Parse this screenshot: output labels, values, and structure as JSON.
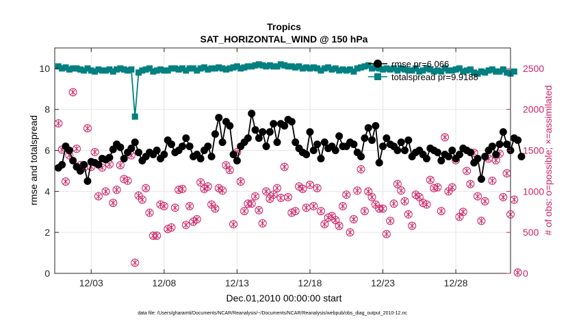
{
  "chart_data": {
    "type": "line",
    "title": "Tropics",
    "subtitle": "SAT_HORIZONTAL_WIND @ 150 hPa",
    "xlabel": "Dec.01,2010 00:00:00 start",
    "ylabel": "rmse and totalspread",
    "y2label": "# of obs: o=possible; ×=assimilated",
    "footer": "data file: /Users/gharamti/Documents/NCAR/Reanalysis/~/Documents/NCAR/Reanalysis/webpub/obs_diag_output_2010-12.nc",
    "xlim": [
      0.5,
      31.75
    ],
    "ylim": [
      0,
      11
    ],
    "y2lim": [
      0,
      2750
    ],
    "xticks": [
      {
        "day": 3,
        "label": "12/03"
      },
      {
        "day": 8,
        "label": "12/08"
      },
      {
        "day": 13,
        "label": "12/13"
      },
      {
        "day": 18,
        "label": "12/18"
      },
      {
        "day": 23,
        "label": "12/23"
      },
      {
        "day": 28,
        "label": "12/28"
      }
    ],
    "yticks": [
      0,
      2,
      4,
      6,
      8,
      10
    ],
    "y2ticks": [
      0,
      500,
      1000,
      1500,
      2000,
      2500
    ],
    "x_step": 0.25,
    "legend": {
      "placement": "top-right",
      "entries": [
        "rmse pr=6.066",
        "totalspread pr=9.9188"
      ]
    },
    "series": [
      {
        "name": "rmse pr=6.066",
        "axis": "left",
        "color": "#000000",
        "values": [
          5.15,
          5.3,
          6.2,
          6.0,
          5.5,
          5.2,
          5.0,
          5.3,
          4.5,
          5.45,
          5.4,
          5.3,
          5.6,
          5.55,
          5.65,
          6.05,
          6.3,
          6.15,
          5.6,
          5.9,
          6.1,
          6.4,
          5.9,
          5.5,
          5.7,
          5.9,
          5.8,
          6.0,
          5.6,
          5.8,
          6.5,
          6.3,
          5.9,
          6.0,
          6.2,
          6.6,
          6.2,
          5.7,
          5.8,
          5.6,
          6.0,
          6.2,
          5.7,
          6.8,
          7.6,
          6.4,
          7.4,
          7.2,
          5.8,
          5.5,
          6.2,
          6.4,
          6.6,
          7.8,
          7.0,
          6.6,
          6.9,
          6.2,
          6.9,
          7.3,
          6.4,
          7.3,
          7.2,
          7.5,
          7.4,
          6.4,
          6.1,
          5.9,
          5.8,
          6.9,
          6.0,
          6.3,
          5.6,
          6.4,
          6.1,
          6.2,
          6.0,
          6.7,
          6.2,
          6.2,
          6.4,
          6.3,
          5.9,
          5.7,
          6.6,
          7.1,
          6.5,
          7.2,
          5.4,
          6.2,
          6.6,
          6.3,
          6.2,
          6.0,
          6.4,
          6.0,
          6.5,
          5.7,
          5.9,
          6.0,
          5.8,
          5.6,
          6.1,
          6.0,
          5.9,
          5.5,
          5.8,
          5.7,
          6.0,
          5.6,
          5.8,
          6.1,
          6.0,
          5.9,
          5.4,
          5.6,
          4.6,
          5.7,
          6.0,
          6.2,
          5.8,
          6.3,
          6.9,
          6.3,
          6.0,
          6.6,
          6.5,
          5.7
        ]
      },
      {
        "name": "totalspread pr=9.9188",
        "axis": "left",
        "color": "#008080",
        "values": [
          10.1,
          10.0,
          10.05,
          9.95,
          10.0,
          10.0,
          9.95,
          9.9,
          10.0,
          9.9,
          9.85,
          9.95,
          9.9,
          9.9,
          9.95,
          9.85,
          9.95,
          10.0,
          9.95,
          9.9,
          9.95,
          7.65,
          9.8,
          9.9,
          9.95,
          10.0,
          9.85,
          9.9,
          9.95,
          9.9,
          9.9,
          10.0,
          10.0,
          9.95,
          10.0,
          9.9,
          10.0,
          10.0,
          9.9,
          10.0,
          10.05,
          9.95,
          10.0,
          10.0,
          10.05,
          10.0,
          9.95,
          10.0,
          10.05,
          10.1,
          10.0,
          10.05,
          10.1,
          10.1,
          10.15,
          10.2,
          10.15,
          10.1,
          10.15,
          10.1,
          10.1,
          10.2,
          10.15,
          10.1,
          10.1,
          10.05,
          10.1,
          10.0,
          10.05,
          10.0,
          10.05,
          10.0,
          9.9,
          10.0,
          10.05,
          9.95,
          10.0,
          9.9,
          9.95,
          9.9,
          9.95,
          9.85,
          10.0,
          10.05,
          10.1,
          10.15,
          10.0,
          10.05,
          10.0,
          9.95,
          10.0,
          9.95,
          10.0,
          9.9,
          10.0,
          9.95,
          9.9,
          9.9,
          10.0,
          9.85,
          9.9,
          10.0,
          9.95,
          9.85,
          9.9,
          9.85,
          10.0,
          9.9,
          9.9,
          9.95,
          10.0,
          9.85,
          9.9,
          9.95,
          9.8,
          9.75,
          9.85,
          9.8,
          9.9,
          9.95,
          9.85,
          9.85,
          9.95,
          9.8,
          9.75,
          9.85
        ]
      },
      {
        "name": "obs possible",
        "axis": "right",
        "color": "#cc2266",
        "values": [
          1830,
          1510,
          1120,
          1440,
          2210,
          1520,
          1320,
          1290,
          1770,
          1300,
          1480,
          940,
          1290,
          1000,
          1330,
          860,
          1020,
          1320,
          1150,
          1130,
          1440,
          130,
          950,
          900,
          1040,
          740,
          460,
          460,
          840,
          820,
          540,
          560,
          800,
          1020,
          1030,
          590,
          820,
          630,
          660,
          1110,
          1030,
          1060,
          840,
          790,
          1040,
          1010,
          1320,
          1260,
          600,
          1480,
          1120,
          760,
          850,
          850,
          940,
          770,
          610,
          1000,
          910,
          960,
          1040,
          920,
          1300,
          930,
          740,
          760,
          1060,
          1030,
          800,
          1080,
          820,
          1040,
          760,
          600,
          680,
          700,
          650,
          580,
          820,
          960,
          500,
          660,
          1010,
          1270,
          760,
          1000,
          930,
          840,
          790,
          790,
          480,
          640,
          850,
          1090,
          1010,
          880,
          720,
          580,
          960,
          930,
          860,
          840,
          1140,
          1040,
          1050,
          760,
          1660,
          1000,
          1050,
          1380,
          690,
          750,
          1250,
          1090,
          1470,
          940,
          640,
          880,
          1400,
          1130,
          1380,
          1460,
          930,
          1220,
          720,
          900,
          10
        ]
      },
      {
        "name": "obs assimilated",
        "axis": "right",
        "color": "#cc2266",
        "values": [
          1830,
          1510,
          1120,
          1440,
          2210,
          1520,
          1320,
          1290,
          1770,
          1300,
          1480,
          940,
          1290,
          1000,
          1330,
          860,
          1020,
          1320,
          1150,
          1130,
          1440,
          130,
          950,
          900,
          1040,
          740,
          460,
          460,
          840,
          820,
          540,
          560,
          800,
          1020,
          1030,
          590,
          820,
          630,
          660,
          1110,
          1030,
          1060,
          840,
          790,
          1040,
          1010,
          1320,
          1260,
          600,
          1480,
          1120,
          760,
          850,
          850,
          940,
          770,
          610,
          1000,
          910,
          960,
          1040,
          920,
          1300,
          930,
          740,
          760,
          1060,
          1030,
          800,
          1080,
          820,
          1040,
          760,
          600,
          680,
          700,
          650,
          580,
          820,
          960,
          500,
          660,
          1010,
          1270,
          760,
          1000,
          930,
          840,
          790,
          790,
          480,
          640,
          850,
          1090,
          1010,
          880,
          720,
          580,
          960,
          930,
          860,
          840,
          1140,
          1040,
          1050,
          760,
          1660,
          1000,
          1050,
          1380,
          690,
          750,
          1250,
          1090,
          1470,
          940,
          640,
          880,
          1400,
          1130,
          1380,
          1460,
          930,
          1220,
          720,
          900,
          10
        ]
      }
    ]
  }
}
